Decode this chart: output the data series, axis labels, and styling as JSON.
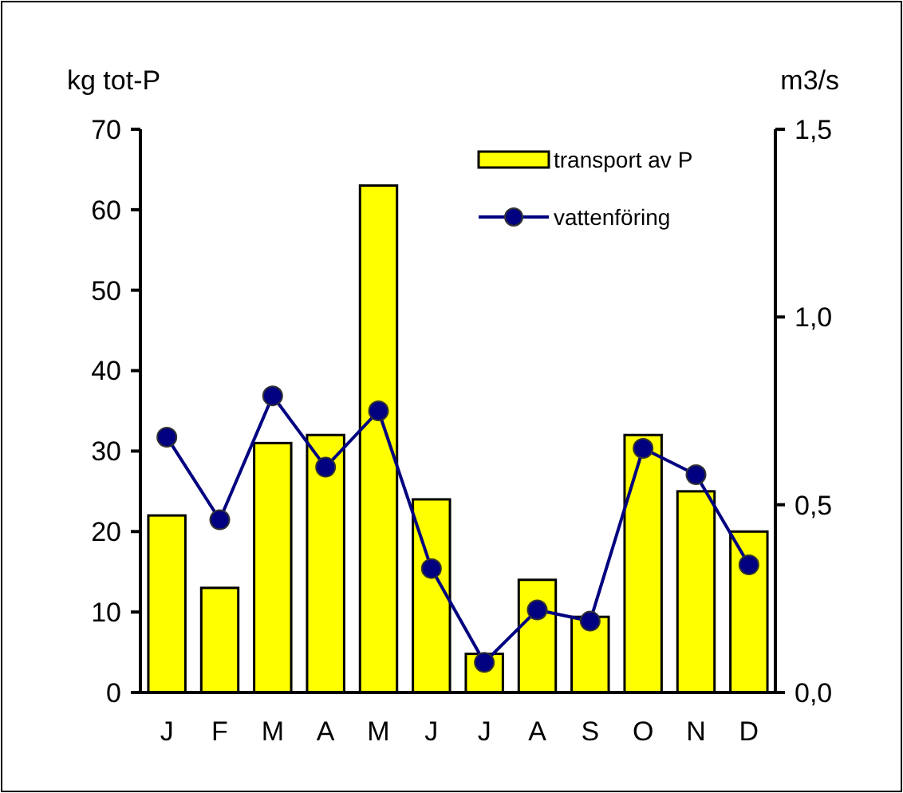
{
  "chart_data": {
    "type": "bar",
    "ylabel": "kg tot-P",
    "y2label": "m3/s",
    "categories": [
      "J",
      "F",
      "M",
      "A",
      "M",
      "J",
      "J",
      "A",
      "S",
      "O",
      "N",
      "D"
    ],
    "series": [
      {
        "name": "transport av P",
        "color": "#ffff00",
        "values": [
          22,
          13,
          31,
          32,
          63,
          24,
          4.8,
          14,
          9.4,
          32,
          25,
          20
        ]
      },
      {
        "name": "vattenföring",
        "type": "line",
        "axis": "y2",
        "color": "#000080",
        "marker": "circle",
        "values": [
          0.68,
          0.46,
          0.79,
          0.6,
          0.75,
          0.33,
          0.08,
          0.22,
          0.19,
          0.65,
          0.58,
          0.34
        ]
      }
    ],
    "ylim": [
      0,
      70
    ],
    "yticks": [
      0,
      10,
      20,
      30,
      40,
      50,
      60,
      70
    ],
    "y2lim": [
      0,
      1.5
    ],
    "y2ticks": [
      {
        "value": 0,
        "label": "0,0"
      },
      {
        "value": 0.5,
        "label": "0,5"
      },
      {
        "value": 1,
        "label": "1,0"
      },
      {
        "value": 1.5,
        "label": "1,5"
      }
    ],
    "legend": "top right",
    "grid": false
  }
}
